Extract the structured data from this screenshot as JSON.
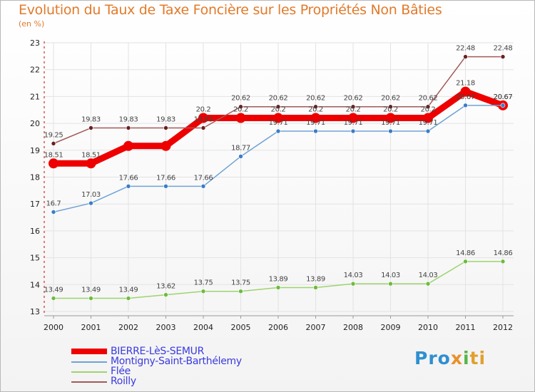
{
  "title": "Evolution du Taux de Taxe Foncière sur les Propriétés Non Bâties",
  "subtitle": "(en %)",
  "logo": {
    "part1": "Pro",
    "part2": "x",
    "part3": "i",
    "part4": "ti"
  },
  "colors": {
    "axis": "#cc0000",
    "grid": "#e3e3e3"
  },
  "chart_data": {
    "type": "line",
    "title": "Evolution du Taux de Taxe Foncière sur les Propriétés Non Bâties",
    "ylabel": "(en %)",
    "xlabel": "",
    "ylim": [
      13,
      23
    ],
    "yticks": [
      13,
      14,
      15,
      16,
      17,
      18,
      19,
      20,
      21,
      22,
      23
    ],
    "categories": [
      "2000",
      "2001",
      "2002",
      "2003",
      "2004",
      "2005",
      "2006",
      "2007",
      "2008",
      "2009",
      "2010",
      "2011",
      "2012"
    ],
    "legend_position": "bottom-left",
    "series": [
      {
        "name": "BIERRE-LèS-SEMUR",
        "color": "#ee0000",
        "thick": true,
        "values": [
          18.51,
          18.51,
          19.16,
          19.16,
          20.2,
          20.2,
          20.2,
          20.2,
          20.2,
          20.2,
          20.2,
          21.18,
          20.67
        ],
        "labels": [
          "18.51",
          "18.51",
          "",
          "",
          "20.2",
          "20.2",
          "20.2",
          "20.2",
          "20.2",
          "20.2",
          "20.2",
          "21.18",
          "20.67"
        ]
      },
      {
        "name": "Montigny-Saint-Barthélemy",
        "color": "#6fa3d6",
        "dot": "#3a7dc8",
        "values": [
          16.7,
          17.03,
          17.66,
          17.66,
          17.66,
          18.77,
          19.71,
          19.71,
          19.71,
          19.71,
          19.71,
          20.67,
          20.67
        ],
        "labels": [
          "16.7",
          "17.03",
          "17.66",
          "17.66",
          "17.66",
          "18.77",
          "19.71",
          "19.71",
          "19.71",
          "19.71",
          "19.71",
          "20.67",
          "20.67"
        ]
      },
      {
        "name": "Flée",
        "color": "#9ed36f",
        "dot": "#6dbb3c",
        "values": [
          13.49,
          13.49,
          13.49,
          13.62,
          13.75,
          13.75,
          13.89,
          13.89,
          14.03,
          14.03,
          14.03,
          14.86,
          14.86
        ],
        "labels": [
          "13.49",
          "13.49",
          "13.49",
          "13.62",
          "13.75",
          "13.75",
          "13.89",
          "13.89",
          "14.03",
          "14.03",
          "14.03",
          "14.86",
          "14.86"
        ]
      },
      {
        "name": "Roilly",
        "color": "#a45a5a",
        "dot": "#6b1f1f",
        "values": [
          19.25,
          19.83,
          19.83,
          19.83,
          19.83,
          20.62,
          20.62,
          20.62,
          20.62,
          20.62,
          20.62,
          22.48,
          22.48
        ],
        "labels": [
          "19.25",
          "19.83",
          "19.83",
          "19.83",
          "19.83",
          "20.62",
          "20.62",
          "20.62",
          "20.62",
          "20.62",
          "20.62",
          "22.48",
          "22.48"
        ]
      }
    ]
  }
}
